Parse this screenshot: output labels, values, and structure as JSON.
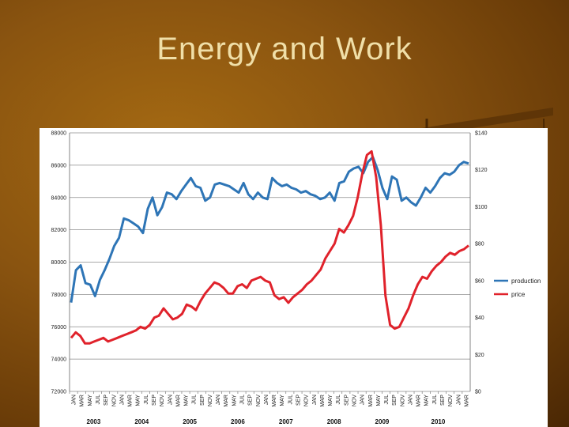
{
  "slide": {
    "title": "Energy and Work"
  },
  "colors": {
    "production": "#2e75b6",
    "price": "#e0222b",
    "background": "#8a5410",
    "title": "#f0dfa8"
  },
  "chart_data": {
    "type": "line",
    "title": "",
    "x_labels": [
      "JAN",
      "MAR",
      "MAY",
      "JUL",
      "SEP",
      "NOV",
      "JAN",
      "MAR",
      "MAY",
      "JUL",
      "SEP",
      "NOV",
      "JAN",
      "MAR",
      "MAY",
      "JUL",
      "SEP",
      "NOV",
      "JAN",
      "MAR",
      "MAY",
      "JUL",
      "SEP",
      "NOV",
      "JAN",
      "MAR",
      "MAY",
      "JUL",
      "SEP",
      "NOV",
      "JAN",
      "MAR",
      "MAY",
      "JUL",
      "SEP",
      "NOV",
      "JAN",
      "MAR",
      "MAY",
      "JUL",
      "SEP",
      "NOV",
      "JAN",
      "MAR",
      "MAY",
      "JUL",
      "SEP",
      "NOV",
      "JAN",
      "MAR"
    ],
    "years": [
      {
        "label": "2003",
        "start": 0,
        "end": 5
      },
      {
        "label": "2004",
        "start": 6,
        "end": 11
      },
      {
        "label": "2005",
        "start": 12,
        "end": 17
      },
      {
        "label": "2006",
        "start": 18,
        "end": 23
      },
      {
        "label": "2007",
        "start": 24,
        "end": 29
      },
      {
        "label": "2008",
        "start": 30,
        "end": 35
      },
      {
        "label": "2009",
        "start": 36,
        "end": 41
      },
      {
        "label": "2010",
        "start": 42,
        "end": 49
      }
    ],
    "y_left": {
      "min": 72000,
      "max": 88000,
      "step": 2000,
      "ticks": [
        "72000",
        "74000",
        "76000",
        "78000",
        "80000",
        "82000",
        "84000",
        "86000",
        "88000"
      ]
    },
    "y_right": {
      "min": 0,
      "max": 140,
      "step": 20,
      "ticks": [
        "$0",
        "$20",
        "$40",
        "$60",
        "$80",
        "$100",
        "$120",
        "$140"
      ]
    },
    "grid": true,
    "legend_position": "right",
    "series": [
      {
        "name": "production",
        "axis": "left",
        "values": [
          77500,
          79500,
          79800,
          78700,
          78600,
          77900,
          78900,
          79500,
          80200,
          81000,
          81500,
          82700,
          82600,
          82400,
          82200,
          81800,
          83300,
          84000,
          82900,
          83400,
          84300,
          84200,
          83900,
          84400,
          84800,
          85200,
          84700,
          84600,
          83800,
          84000,
          84800,
          84900,
          84800,
          84700,
          84500,
          84300,
          84900,
          84200,
          83900,
          84300,
          84000,
          83900,
          85200,
          84900,
          84700,
          84800,
          84600,
          84500,
          84300,
          84400,
          84200,
          84100,
          83900,
          84000,
          84300,
          83800,
          84900,
          85000,
          85600,
          85800,
          85900,
          85500,
          86200,
          86500,
          85700,
          84600,
          83900,
          85300,
          85100,
          83800,
          84000,
          83700,
          83500,
          84000,
          84600,
          84300,
          84700,
          85200,
          85500,
          85400,
          85600,
          86000,
          86200,
          86100
        ]
      },
      {
        "name": "price",
        "axis": "right",
        "values": [
          29,
          32,
          30,
          26,
          26,
          27,
          28,
          29,
          27,
          28,
          29,
          30,
          31,
          32,
          33,
          35,
          34,
          36,
          40,
          41,
          45,
          42,
          39,
          40,
          42,
          47,
          46,
          44,
          49,
          53,
          56,
          59,
          58,
          56,
          53,
          53,
          57,
          58,
          56,
          60,
          61,
          62,
          60,
          59,
          52,
          50,
          51,
          48,
          51,
          53,
          55,
          58,
          60,
          63,
          66,
          72,
          76,
          80,
          88,
          86,
          90,
          95,
          105,
          118,
          128,
          130,
          116,
          90,
          52,
          36,
          34,
          35,
          40,
          45,
          52,
          58,
          62,
          61,
          65,
          68,
          70,
          73,
          75,
          74,
          76,
          77,
          79
        ]
      }
    ]
  }
}
